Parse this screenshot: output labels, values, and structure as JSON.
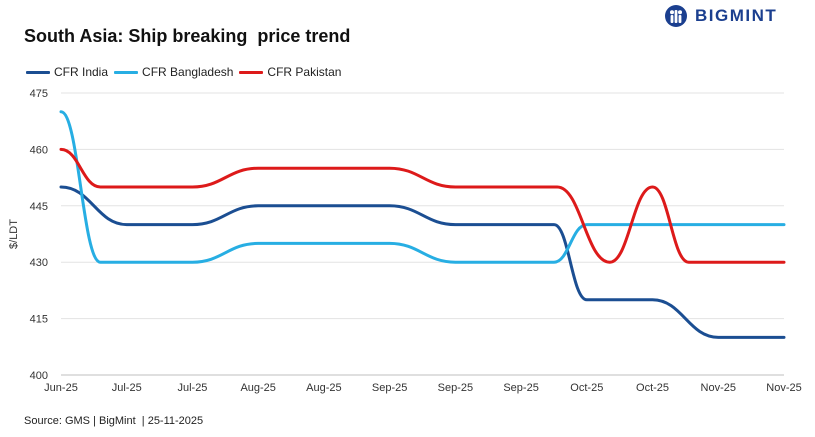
{
  "header": {
    "title": "South Asia: Ship breaking  price trend",
    "brand_name": "BIGMINT",
    "brand_color": "#1b3f8f"
  },
  "footer": {
    "source": "Source: GMS | BigMint  | 25-11-2025"
  },
  "chart_data": {
    "type": "line",
    "title": "South Asia: Ship breaking  price trend",
    "xlabel": "",
    "ylabel": "$/LDT",
    "ylim": [
      400,
      475
    ],
    "yticks": [
      400,
      415,
      430,
      445,
      460,
      475
    ],
    "grid": true,
    "legend_position": "top-left",
    "x": [
      "Jun-25",
      "Jul-25",
      "Jul-25",
      "Aug-25",
      "Aug-25",
      "Sep-25",
      "Sep-25",
      "Sep-25",
      "Oct-25",
      "Oct-25",
      "Nov-25",
      "Nov-25"
    ],
    "series": [
      {
        "name": "CFR India",
        "color": "#1b4e92",
        "values": [
          450,
          440,
          440,
          445,
          445,
          445,
          440,
          440,
          420,
          420,
          410,
          410
        ],
        "points": [
          [
            0,
            450
          ],
          [
            1,
            440
          ],
          [
            2,
            440
          ],
          [
            3,
            445
          ],
          [
            4,
            445
          ],
          [
            5,
            445
          ],
          [
            6,
            440
          ],
          [
            7,
            440
          ],
          [
            7.5,
            440
          ],
          [
            8,
            420
          ],
          [
            8.5,
            420
          ],
          [
            9,
            420
          ],
          [
            10,
            410
          ],
          [
            11,
            410
          ]
        ]
      },
      {
        "name": "CFR Bangladesh",
        "color": "#27aee3",
        "values": [
          470,
          430,
          430,
          435,
          435,
          435,
          430,
          430,
          440,
          440,
          440,
          440
        ],
        "points": [
          [
            0,
            470
          ],
          [
            0.6,
            430
          ],
          [
            1,
            430
          ],
          [
            2,
            430
          ],
          [
            3,
            435
          ],
          [
            4,
            435
          ],
          [
            5,
            435
          ],
          [
            6,
            430
          ],
          [
            7,
            430
          ],
          [
            7.5,
            430
          ],
          [
            8,
            440
          ],
          [
            9,
            440
          ],
          [
            10,
            440
          ],
          [
            11,
            440
          ]
        ]
      },
      {
        "name": "CFR Pakistan",
        "color": "#dd1a1a",
        "values": [
          460,
          450,
          450,
          455,
          455,
          455,
          450,
          450,
          450,
          450,
          430,
          430
        ],
        "points": [
          [
            0,
            460
          ],
          [
            0.6,
            450
          ],
          [
            1,
            450
          ],
          [
            2,
            450
          ],
          [
            3,
            455
          ],
          [
            4,
            455
          ],
          [
            5,
            455
          ],
          [
            6,
            450
          ],
          [
            7,
            450
          ],
          [
            7.55,
            450
          ],
          [
            8.35,
            430
          ],
          [
            9,
            450
          ],
          [
            9.55,
            430
          ],
          [
            10,
            430
          ],
          [
            11,
            430
          ]
        ]
      }
    ]
  }
}
